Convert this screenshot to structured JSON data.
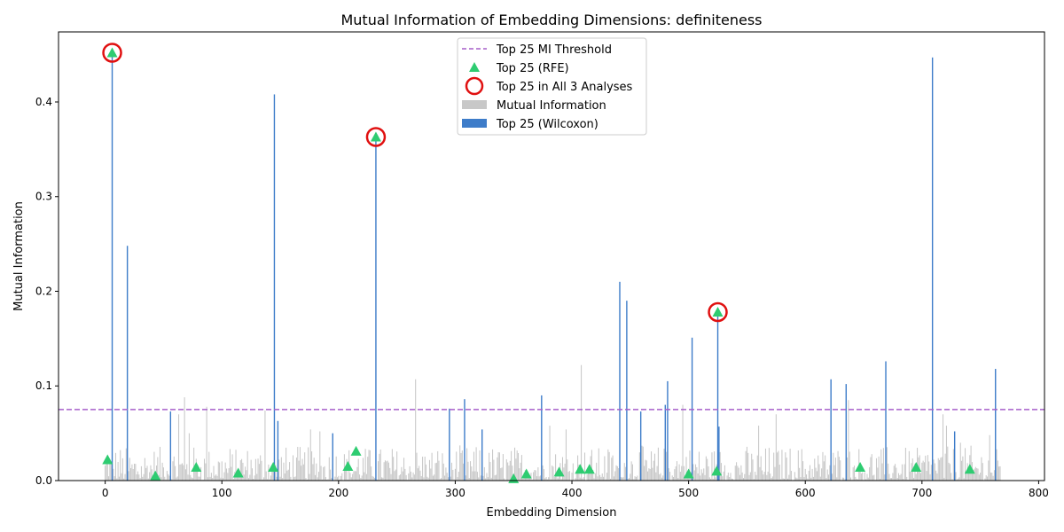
{
  "chart_data": {
    "type": "bar",
    "title": "Mutual Information of Embedding Dimensions: definiteness",
    "xlabel": "Embedding Dimension",
    "ylabel": "Mutual Information",
    "xlim": [
      -40,
      805
    ],
    "ylim": [
      0,
      0.474
    ],
    "x_ticks": [
      0,
      100,
      200,
      300,
      400,
      500,
      600,
      700,
      800
    ],
    "y_ticks": [
      0.0,
      0.1,
      0.2,
      0.3,
      0.4
    ],
    "y_tick_labels": [
      "0.0",
      "0.1",
      "0.2",
      "0.3",
      "0.4"
    ],
    "threshold": 0.075,
    "n_dimensions": 768,
    "legend": {
      "placement": "upper center",
      "entries": [
        "Top 25 MI Threshold",
        "Top 25 (RFE)",
        "Top 25 in All 3 Analyses",
        "Mutual Information",
        "Top 25 (Wilcoxon)"
      ]
    },
    "colors": {
      "mi_bar": "#c8c8c8",
      "wilcoxon_bar": "#3d7cc9",
      "threshold": "#a65fc9",
      "rfe_marker": "#2ecc71",
      "all3_circle": "#e01010"
    },
    "mi_highlights": [
      {
        "x": 63,
        "y": 0.07
      },
      {
        "x": 68,
        "y": 0.088
      },
      {
        "x": 72,
        "y": 0.05
      },
      {
        "x": 87,
        "y": 0.078
      },
      {
        "x": 137,
        "y": 0.074
      },
      {
        "x": 176,
        "y": 0.054
      },
      {
        "x": 184,
        "y": 0.052
      },
      {
        "x": 266,
        "y": 0.107
      },
      {
        "x": 381,
        "y": 0.058
      },
      {
        "x": 395,
        "y": 0.054
      },
      {
        "x": 408,
        "y": 0.122
      },
      {
        "x": 495,
        "y": 0.08
      },
      {
        "x": 560,
        "y": 0.058
      },
      {
        "x": 575,
        "y": 0.07
      },
      {
        "x": 637,
        "y": 0.085
      },
      {
        "x": 718,
        "y": 0.07
      },
      {
        "x": 721,
        "y": 0.058
      },
      {
        "x": 733,
        "y": 0.04
      },
      {
        "x": 758,
        "y": 0.048
      }
    ],
    "wilcoxon_bars": [
      {
        "x": 6,
        "y": 0.452
      },
      {
        "x": 19,
        "y": 0.248
      },
      {
        "x": 56,
        "y": 0.073
      },
      {
        "x": 145,
        "y": 0.408
      },
      {
        "x": 148,
        "y": 0.063
      },
      {
        "x": 195,
        "y": 0.05
      },
      {
        "x": 232,
        "y": 0.363
      },
      {
        "x": 295,
        "y": 0.076
      },
      {
        "x": 308,
        "y": 0.086
      },
      {
        "x": 323,
        "y": 0.054
      },
      {
        "x": 374,
        "y": 0.09
      },
      {
        "x": 441,
        "y": 0.21
      },
      {
        "x": 447,
        "y": 0.19
      },
      {
        "x": 459,
        "y": 0.073
      },
      {
        "x": 480,
        "y": 0.08
      },
      {
        "x": 482,
        "y": 0.105
      },
      {
        "x": 503,
        "y": 0.151
      },
      {
        "x": 525,
        "y": 0.178
      },
      {
        "x": 526,
        "y": 0.057
      },
      {
        "x": 622,
        "y": 0.107
      },
      {
        "x": 635,
        "y": 0.102
      },
      {
        "x": 669,
        "y": 0.126
      },
      {
        "x": 709,
        "y": 0.447
      },
      {
        "x": 728,
        "y": 0.052
      },
      {
        "x": 763,
        "y": 0.118
      }
    ],
    "rfe_points": [
      {
        "x": 2,
        "y": 0.022
      },
      {
        "x": 6,
        "y": 0.452
      },
      {
        "x": 43,
        "y": 0.005
      },
      {
        "x": 78,
        "y": 0.014
      },
      {
        "x": 114,
        "y": 0.008
      },
      {
        "x": 144,
        "y": 0.014
      },
      {
        "x": 208,
        "y": 0.015
      },
      {
        "x": 215,
        "y": 0.031
      },
      {
        "x": 232,
        "y": 0.363
      },
      {
        "x": 350,
        "y": 0.002
      },
      {
        "x": 361,
        "y": 0.007
      },
      {
        "x": 389,
        "y": 0.009
      },
      {
        "x": 407,
        "y": 0.012
      },
      {
        "x": 415,
        "y": 0.012
      },
      {
        "x": 500,
        "y": 0.007
      },
      {
        "x": 524,
        "y": 0.01
      },
      {
        "x": 525,
        "y": 0.178
      },
      {
        "x": 647,
        "y": 0.014
      },
      {
        "x": 695,
        "y": 0.014
      },
      {
        "x": 741,
        "y": 0.012
      }
    ],
    "all3_points": [
      {
        "x": 6,
        "y": 0.452
      },
      {
        "x": 232,
        "y": 0.363
      },
      {
        "x": 525,
        "y": 0.178
      }
    ]
  }
}
